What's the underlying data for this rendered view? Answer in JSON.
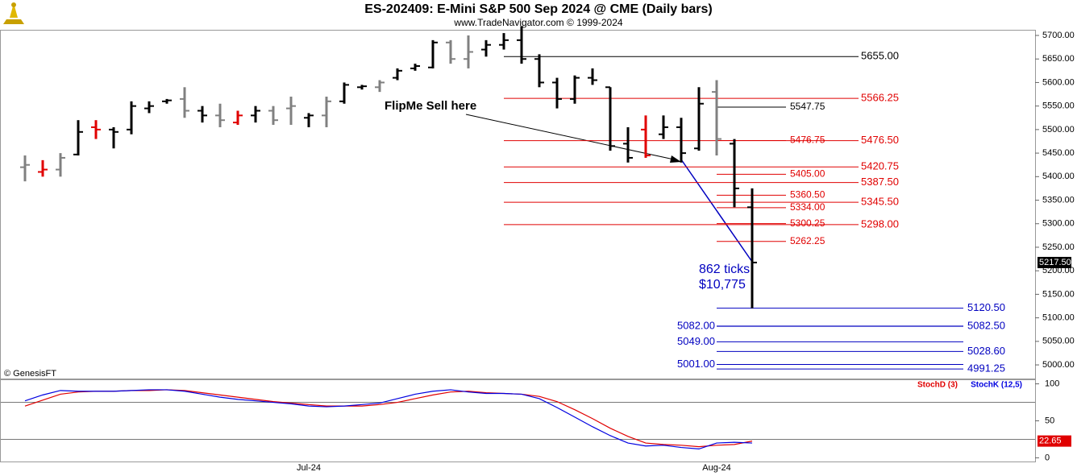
{
  "header": {
    "title": "ES-202409:  E-Mini S&P 500 Sep 2024 @ CME  (Daily bars)",
    "subtitle": "www.TradeNavigator.com © 1999-2024",
    "credit": "© GenesisFT"
  },
  "annotations": {
    "sell": "FlipMe Sell here",
    "ticks": "862 ticks",
    "dollars": "$10,775"
  },
  "chart_data": [
    {
      "type": "ohlc",
      "categories": [
        null,
        null,
        null,
        null,
        null,
        null,
        null,
        null,
        null,
        null,
        null,
        null,
        null,
        null,
        null,
        null,
        "Jul-24",
        null,
        null,
        null,
        null,
        null,
        null,
        null,
        null,
        null,
        null,
        null,
        null,
        null,
        null,
        null,
        null,
        null,
        null,
        null,
        null,
        null,
        null,
        "Aug-24",
        null,
        null
      ],
      "open": [
        5420,
        5410,
        5415,
        5447,
        5505,
        5500,
        5500,
        5545,
        5560,
        5565,
        5540,
        5530,
        5515,
        5530,
        5540,
        5545,
        5525,
        5530,
        5560,
        5590,
        5590,
        5610,
        5630,
        5632,
        5685,
        5650,
        5670,
        5680,
        5690,
        5650,
        5600,
        5565,
        5610,
        5590,
        5470,
        5500,
        5490,
        5505,
        5460,
        5580,
        5470,
        5335
      ],
      "high": [
        5445,
        5435,
        5450,
        5520,
        5520,
        5505,
        5560,
        5560,
        5565,
        5590,
        5550,
        5555,
        5540,
        5550,
        5550,
        5570,
        5535,
        5570,
        5600,
        5595,
        5605,
        5630,
        5640,
        5690,
        5690,
        5700,
        5690,
        5705,
        5720,
        5660,
        5610,
        5615,
        5630,
        5590,
        5505,
        5530,
        5530,
        5525,
        5590,
        5605,
        5480,
        5375
      ],
      "low": [
        5390,
        5400,
        5400,
        5445,
        5480,
        5460,
        5490,
        5535,
        5555,
        5525,
        5515,
        5505,
        5510,
        5515,
        5510,
        5510,
        5505,
        5505,
        5555,
        5585,
        5580,
        5605,
        5625,
        5630,
        5640,
        5630,
        5655,
        5670,
        5640,
        5590,
        5545,
        5555,
        5595,
        5455,
        5430,
        5440,
        5480,
        5430,
        5455,
        5445,
        5335,
        5120.5
      ],
      "close": [
        5425,
        5415,
        5440,
        5495,
        5500,
        5495,
        5550,
        5550,
        5562,
        5540,
        5530,
        5520,
        5530,
        5540,
        5520,
        5550,
        5530,
        5560,
        5595,
        5592,
        5600,
        5625,
        5635,
        5685,
        5650,
        5665,
        5680,
        5690,
        5650,
        5600,
        5565,
        5610,
        5605,
        5465,
        5440,
        5445,
        5505,
        5450,
        5555,
        5480,
        5375,
        5217.5
      ],
      "colors": [
        "#808080",
        "#e00000",
        "#808080",
        "#000000",
        "#e00000",
        "#000000",
        "#000000",
        "#000000",
        "#000000",
        "#808080",
        "#000000",
        "#808080",
        "#e00000",
        "#000000",
        "#808080",
        "#808080",
        "#000000",
        "#808080",
        "#000000",
        "#000000",
        "#808080",
        "#000000",
        "#000000",
        "#000000",
        "#808080",
        "#808080",
        "#000000",
        "#000000",
        "#000000",
        "#000000",
        "#000000",
        "#000000",
        "#000000",
        "#000000",
        "#000000",
        "#e00000",
        "#000000",
        "#000000",
        "#000000",
        "#808080",
        "#000000",
        "#000000"
      ],
      "ylim": [
        4971,
        5712
      ],
      "yticks": [
        {
          "value": 5000,
          "label": "5000.00"
        },
        {
          "value": 5050,
          "label": "5050.00"
        },
        {
          "value": 5100,
          "label": "5100.00"
        },
        {
          "value": 5150,
          "label": "5150.00"
        },
        {
          "value": 5200,
          "label": "5200.00"
        },
        {
          "value": 5250,
          "label": "5250.00"
        },
        {
          "value": 5300,
          "label": "5300.00"
        },
        {
          "value": 5350,
          "label": "5350.00"
        },
        {
          "value": 5400,
          "label": "5400.00"
        },
        {
          "value": 5450,
          "label": "5450.00"
        },
        {
          "value": 5500,
          "label": "5500.00"
        },
        {
          "value": 5550,
          "label": "5550.00"
        },
        {
          "value": 5600,
          "label": "5600.00"
        },
        {
          "value": 5650,
          "label": "5650.00"
        },
        {
          "value": 5700,
          "label": "5700.00"
        }
      ],
      "levels": [
        {
          "value": 5655,
          "label": "5655.00",
          "color": "#000000"
        },
        {
          "value": 5566.25,
          "label": "5566.25",
          "color": "#e00000"
        },
        {
          "value": 5547.75,
          "label": "5547.75",
          "color": "#000000"
        },
        {
          "value": 5476.75,
          "label": "5476.75",
          "color": "#e00000"
        },
        {
          "value": 5476.5,
          "label": "5476.50",
          "color": "#e00000"
        },
        {
          "value": 5420.75,
          "label": "5420.75",
          "color": "#e00000"
        },
        {
          "value": 5405,
          "label": "5405.00",
          "color": "#e00000"
        },
        {
          "value": 5387.5,
          "label": "5387.50",
          "color": "#e00000"
        },
        {
          "value": 5360.5,
          "label": "5360.50",
          "color": "#e00000"
        },
        {
          "value": 5345.5,
          "label": "5345.50",
          "color": "#e00000"
        },
        {
          "value": 5334,
          "label": "5334.00",
          "color": "#e00000"
        },
        {
          "value": 5300.25,
          "label": "5300.25",
          "color": "#e00000"
        },
        {
          "value": 5298,
          "label": "5298.00",
          "color": "#e00000"
        },
        {
          "value": 5262.25,
          "label": "5262.25",
          "color": "#e00000"
        },
        {
          "value": 5120.5,
          "label": "5120.50",
          "color": "#0000c0"
        },
        {
          "value": 5082.5,
          "label": "5082.50",
          "color": "#0000c0"
        },
        {
          "value": 5082,
          "label": "5082.00",
          "color": "#0000c0"
        },
        {
          "value": 5049,
          "label": "5049.00",
          "color": "#0000c0"
        },
        {
          "value": 5028.6,
          "label": "5028.60",
          "color": "#0000c0"
        },
        {
          "value": 5001,
          "label": "5001.00",
          "color": "#0000c0"
        },
        {
          "value": 4991.25,
          "label": "4991.25",
          "color": "#0000c0"
        }
      ],
      "price_tag": {
        "value": 5217.5,
        "label": "5217.50"
      }
    },
    {
      "type": "line",
      "series": [
        {
          "name": "StochD (3)",
          "color": "#e00000",
          "values": [
            70,
            78,
            86,
            89,
            90,
            90,
            91,
            91,
            92,
            91,
            88,
            85,
            82,
            79,
            76,
            74,
            72,
            70,
            70,
            70,
            72,
            75,
            80,
            85,
            89,
            90,
            88,
            87,
            86,
            83,
            76,
            65,
            53,
            40,
            29,
            20,
            18,
            17,
            15,
            17,
            18,
            22.65
          ]
        },
        {
          "name": "StochK (12,5)",
          "color": "#0000e0",
          "values": [
            77,
            85,
            91,
            90,
            90,
            90,
            91,
            92,
            92,
            90,
            86,
            82,
            79,
            77,
            75,
            73,
            70,
            69,
            70,
            72,
            74,
            80,
            86,
            90,
            92,
            89,
            87,
            87,
            86,
            80,
            68,
            55,
            42,
            30,
            20,
            16,
            17,
            14,
            12,
            20,
            21,
            20
          ]
        }
      ],
      "ylim": [
        -5,
        105
      ],
      "yticks": [
        0,
        50,
        100
      ],
      "hlines": [
        75,
        25
      ],
      "value_tag": {
        "value": 22.65,
        "label": "22.65"
      }
    }
  ]
}
